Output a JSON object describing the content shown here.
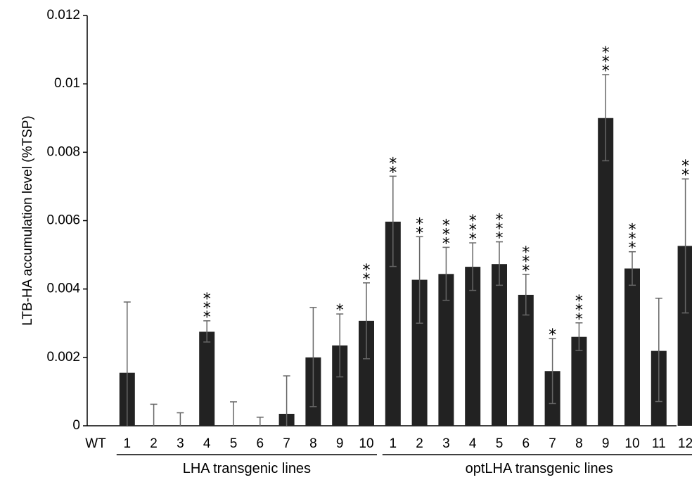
{
  "chart_data": {
    "type": "bar",
    "ylabel": "LTB-HA accumulation level (%TSP)",
    "ylim": [
      0,
      0.012
    ],
    "yticks": [
      0,
      0.002,
      0.004,
      0.006,
      0.008,
      0.01,
      0.012
    ],
    "ytick_labels": [
      "0",
      "0.002",
      "0.004",
      "0.006",
      "0.008",
      "0.01",
      "0.012"
    ],
    "grid": false,
    "color": "#222222",
    "error_color": "#666666",
    "categories": [
      "WT",
      "1",
      "2",
      "3",
      "4",
      "5",
      "6",
      "7",
      "8",
      "9",
      "10",
      "1",
      "2",
      "3",
      "4",
      "5",
      "6",
      "7",
      "8",
      "9",
      "10",
      "11",
      "12"
    ],
    "values": [
      0,
      0.00155,
      0,
      0,
      0.00275,
      0,
      0,
      0.00035,
      0.002,
      0.00235,
      0.00307,
      0.00597,
      0.00427,
      0.00444,
      0.00465,
      0.00473,
      0.00383,
      0.0016,
      0.0026,
      0.009,
      0.0046,
      0.00219,
      0.00526
    ],
    "error_upper": [
      0,
      0.00362,
      0.00063,
      0.00038,
      0.00307,
      0.0007,
      0.00025,
      0.00146,
      0.00346,
      0.00327,
      0.00418,
      0.0073,
      0.00553,
      0.00522,
      0.00535,
      0.00538,
      0.00443,
      0.00255,
      0.00301,
      0.01027,
      0.00509,
      0.00373,
      0.00722
    ],
    "error_lower": [
      0,
      0,
      0,
      0,
      0.00245,
      0,
      0,
      0,
      0.00056,
      0.00143,
      0.00196,
      0.00466,
      0.003,
      0.00367,
      0.00396,
      0.00411,
      0.00324,
      0.00065,
      0.0022,
      0.00775,
      0.00411,
      0.00071,
      0.0033
    ],
    "significance": [
      "",
      "",
      "",
      "",
      "***",
      "",
      "",
      "",
      "",
      "*",
      "**",
      "**",
      "**",
      "***",
      "***",
      "***",
      "***",
      "*",
      "***",
      "***",
      "***",
      "",
      "**"
    ],
    "groups": [
      {
        "label": "LHA transgenic lines",
        "from": 1,
        "to": 10
      },
      {
        "label": "optLHA transgenic lines",
        "from": 11,
        "to": 22
      }
    ]
  }
}
